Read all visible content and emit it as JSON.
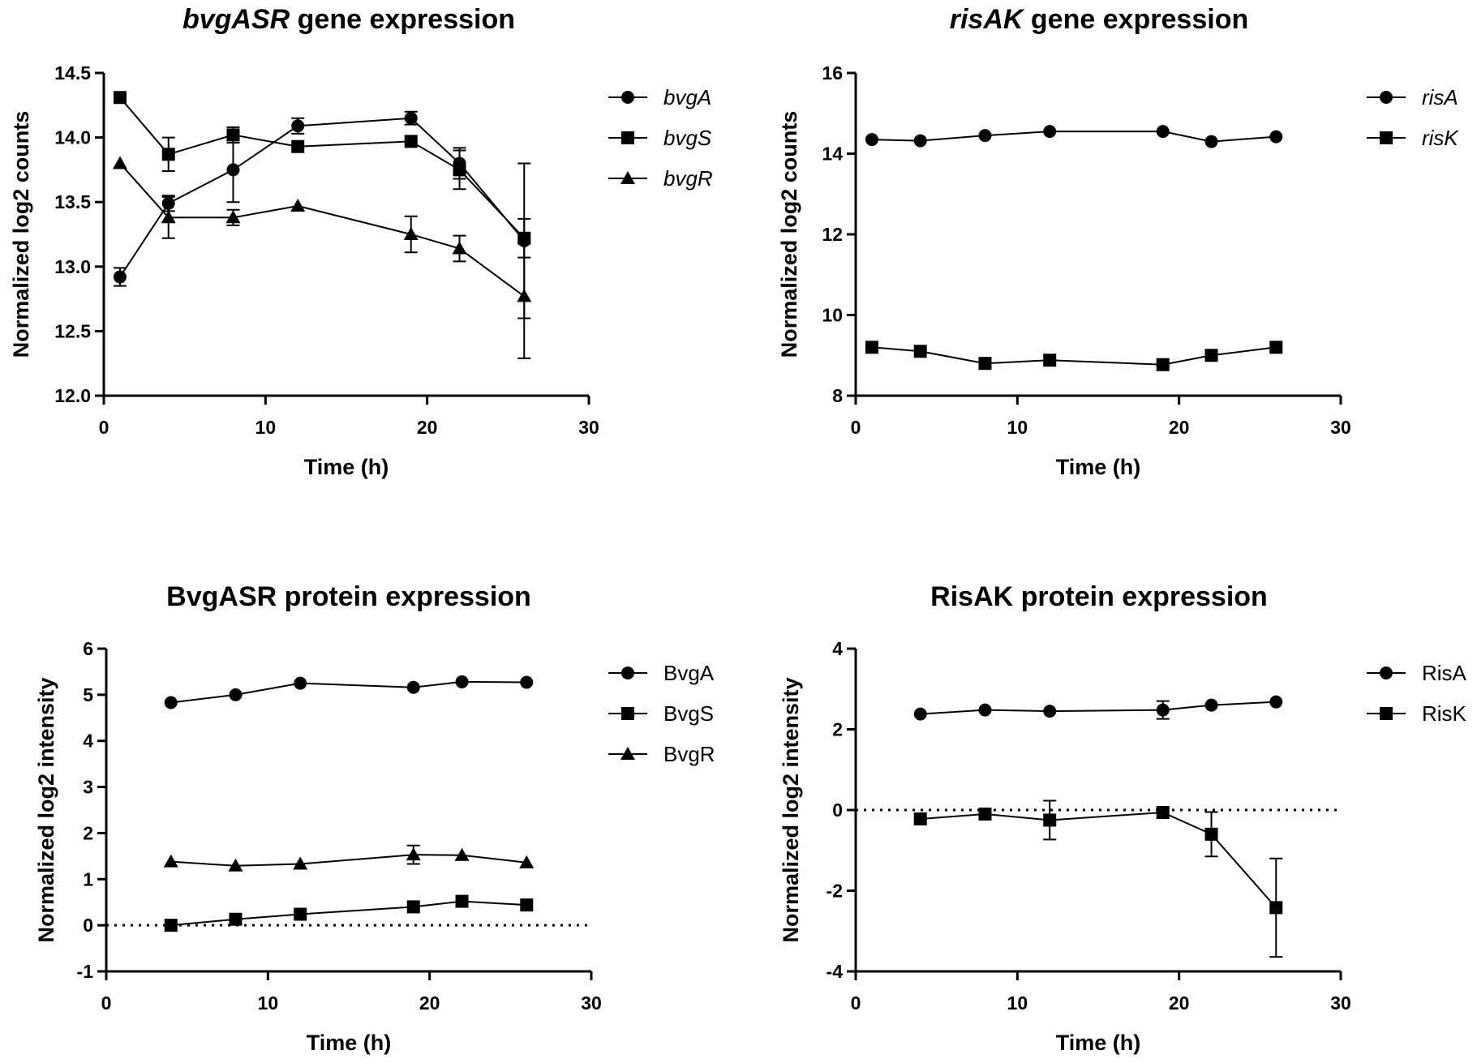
{
  "chart_data": [
    {
      "type": "line",
      "title_italic": "bvgASR",
      "title_rest": " gene expression",
      "xlabel": "Time (h)",
      "ylabel": "Normalized log2 counts",
      "xlim": [
        0,
        30
      ],
      "ylim": [
        12.0,
        14.5
      ],
      "xticks": [
        0,
        10,
        20,
        30
      ],
      "xtick_labels": [
        "0",
        "10",
        "20",
        "30"
      ],
      "yticks": [
        12.0,
        12.5,
        13.0,
        13.5,
        14.0,
        14.5
      ],
      "ytick_labels": [
        "12.0",
        "12.5",
        "13.0",
        "13.5",
        "14.0",
        "14.5"
      ],
      "legend_italic": true,
      "series": [
        {
          "name": "bvgA",
          "marker": "circle",
          "x": [
            1,
            4,
            8,
            12,
            19,
            22,
            26
          ],
          "y": [
            12.92,
            13.49,
            13.75,
            14.09,
            14.15,
            13.8,
            13.2
          ],
          "err": [
            0.07,
            0.06,
            0.25,
            0.06,
            0.05,
            0.12,
            0.6
          ]
        },
        {
          "name": "bvgS",
          "marker": "square",
          "x": [
            1,
            4,
            8,
            12,
            19,
            22,
            26
          ],
          "y": [
            14.31,
            13.87,
            14.02,
            13.93,
            13.97,
            13.75,
            13.22
          ],
          "err": [
            0.0,
            0.13,
            0.06,
            0.0,
            0.0,
            0.15,
            0.15
          ]
        },
        {
          "name": "bvgR",
          "marker": "triangle",
          "x": [
            1,
            4,
            8,
            12,
            19,
            22,
            26
          ],
          "y": [
            13.8,
            13.38,
            13.38,
            13.47,
            13.25,
            13.14,
            12.77
          ],
          "err": [
            0.0,
            0.16,
            0.06,
            0.0,
            0.14,
            0.1,
            0.48
          ]
        }
      ]
    },
    {
      "type": "line",
      "title_italic": "risAK",
      "title_rest": " gene expression",
      "xlabel": "Time (h)",
      "ylabel": "Normalized log2 counts",
      "xlim": [
        0,
        30
      ],
      "ylim": [
        8,
        16
      ],
      "xticks": [
        0,
        10,
        20,
        30
      ],
      "xtick_labels": [
        "0",
        "10",
        "20",
        "30"
      ],
      "yticks": [
        8,
        10,
        12,
        14,
        16
      ],
      "ytick_labels": [
        "8",
        "10",
        "12",
        "14",
        "16"
      ],
      "legend_italic": true,
      "series": [
        {
          "name": "risA",
          "marker": "circle",
          "x": [
            1,
            4,
            8,
            12,
            19,
            22,
            26
          ],
          "y": [
            14.35,
            14.32,
            14.45,
            14.55,
            14.55,
            14.3,
            14.42
          ],
          "err": [
            0,
            0,
            0,
            0,
            0,
            0,
            0
          ]
        },
        {
          "name": "risK",
          "marker": "square",
          "x": [
            1,
            4,
            8,
            12,
            19,
            22,
            26
          ],
          "y": [
            9.2,
            9.1,
            8.8,
            8.88,
            8.77,
            9.0,
            9.2
          ],
          "err": [
            0,
            0,
            0,
            0,
            0,
            0,
            0
          ]
        }
      ]
    },
    {
      "type": "line",
      "title_italic": "",
      "title_rest": "BvgASR protein expression",
      "xlabel": "Time (h)",
      "ylabel": "Normalized log2 intensity",
      "xlim": [
        0,
        30
      ],
      "ylim": [
        -1,
        6
      ],
      "xticks": [
        0,
        10,
        20,
        30
      ],
      "xtick_labels": [
        "0",
        "10",
        "20",
        "30"
      ],
      "yticks": [
        -1,
        0,
        1,
        2,
        3,
        4,
        5,
        6
      ],
      "ytick_labels": [
        "-1",
        "0",
        "1",
        "2",
        "3",
        "4",
        "5",
        "6"
      ],
      "reference_line_y": 0,
      "legend_italic": false,
      "series": [
        {
          "name": "BvgA",
          "marker": "circle",
          "x": [
            4,
            8,
            12,
            19,
            22,
            26
          ],
          "y": [
            4.83,
            5.0,
            5.25,
            5.16,
            5.28,
            5.27
          ],
          "err": [
            0,
            0,
            0,
            0,
            0,
            0
          ]
        },
        {
          "name": "BvgS",
          "marker": "square",
          "x": [
            4,
            8,
            12,
            19,
            22,
            26
          ],
          "y": [
            0.0,
            0.13,
            0.24,
            0.4,
            0.52,
            0.44
          ],
          "err": [
            0,
            0,
            0,
            0,
            0,
            0
          ]
        },
        {
          "name": "BvgR",
          "marker": "triangle",
          "x": [
            4,
            8,
            12,
            19,
            22,
            26
          ],
          "y": [
            1.38,
            1.29,
            1.33,
            1.53,
            1.52,
            1.36
          ],
          "err": [
            0,
            0,
            0,
            0.2,
            0,
            0
          ]
        }
      ]
    },
    {
      "type": "line",
      "title_italic": "",
      "title_rest": "RisAK protein expression",
      "xlabel": "Time (h)",
      "ylabel": "Normalized log2 intensity",
      "xlim": [
        0,
        30
      ],
      "ylim": [
        -4,
        4
      ],
      "xticks": [
        0,
        10,
        20,
        30
      ],
      "xtick_labels": [
        "0",
        "10",
        "20",
        "30"
      ],
      "yticks": [
        -4,
        -2,
        0,
        2,
        4
      ],
      "ytick_labels": [
        "-4",
        "-2",
        "0",
        "2",
        "4"
      ],
      "reference_line_y": 0,
      "legend_italic": false,
      "series": [
        {
          "name": "RisA",
          "marker": "circle",
          "x": [
            4,
            8,
            12,
            19,
            22,
            26
          ],
          "y": [
            2.38,
            2.48,
            2.45,
            2.48,
            2.6,
            2.68
          ],
          "err": [
            0,
            0,
            0,
            0.22,
            0,
            0
          ]
        },
        {
          "name": "RisK",
          "marker": "square",
          "x": [
            4,
            8,
            12,
            19,
            22,
            26
          ],
          "y": [
            -0.22,
            -0.1,
            -0.25,
            -0.06,
            -0.6,
            -2.42
          ],
          "err": [
            0,
            0,
            0.48,
            0,
            0.55,
            1.22
          ]
        }
      ]
    }
  ]
}
